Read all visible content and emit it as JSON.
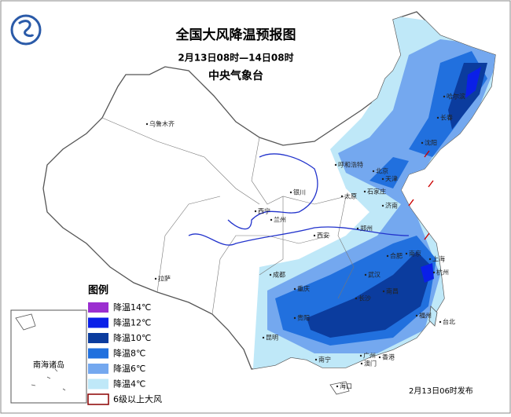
{
  "header": {
    "title": "全国大风降温预报图",
    "subtitle": "2月13日08时—14日08时",
    "issuer": "中央气象台"
  },
  "legend": {
    "title": "图例",
    "items": [
      {
        "label": "降温14℃",
        "color": "#9b2fd0"
      },
      {
        "label": "降温12℃",
        "color": "#0a1fe8"
      },
      {
        "label": "降温10℃",
        "color": "#0b3c9e"
      },
      {
        "label": "降温8℃",
        "color": "#2170de"
      },
      {
        "label": "降温6℃",
        "color": "#74a8ef"
      },
      {
        "label": "降温4℃",
        "color": "#bfe8f8"
      },
      {
        "label": "6级以上大风",
        "color": "#ffffff"
      }
    ]
  },
  "cities": [
    "乌鲁木齐",
    "哈尔滨",
    "长春",
    "沈阳",
    "呼和浩特",
    "北京",
    "天津",
    "银川",
    "太原",
    "石家庄",
    "济南",
    "西宁",
    "兰州",
    "西安",
    "郑州",
    "合肥",
    "南京",
    "上海",
    "杭州",
    "成都",
    "武汉",
    "重庆",
    "长沙",
    "南昌",
    "拉萨",
    "贵阳",
    "福州",
    "台北",
    "昆明",
    "南宁",
    "广州",
    "香港",
    "澳门",
    "海口"
  ],
  "inset": "南海诸岛",
  "footer": "2月13日06时发布"
}
